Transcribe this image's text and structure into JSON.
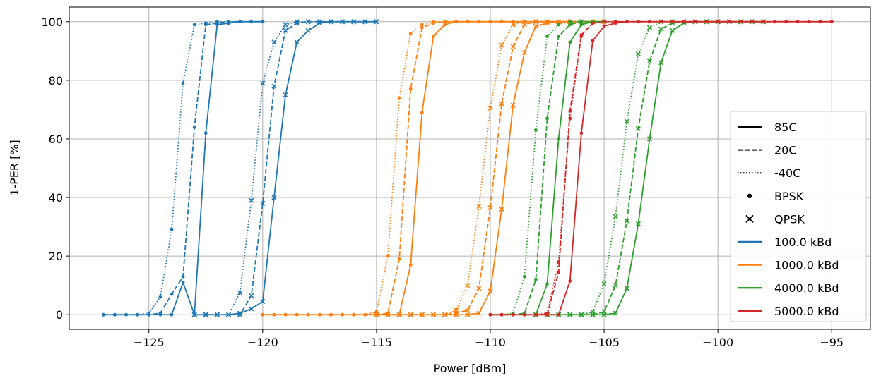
{
  "chart_data": {
    "type": "line",
    "xlabel": "Power [dBm]",
    "ylabel": "1-PER [%]",
    "xlim": [
      -128.5,
      -93.3
    ],
    "ylim": [
      -5,
      105
    ],
    "xticks": [
      -125,
      -120,
      -115,
      -110,
      -105,
      -100,
      -95
    ],
    "xtick_labels": [
      "−125",
      "−120",
      "−115",
      "−110",
      "−105",
      "−100",
      "−95"
    ],
    "yticks": [
      0,
      20,
      40,
      60,
      80,
      100
    ],
    "ytick_labels": [
      "0",
      "20",
      "40",
      "60",
      "80",
      "100"
    ],
    "grid": true,
    "legend_position": "lower-right",
    "colors": {
      "100.0 kBd": "#1f77b4",
      "1000.0 kBd": "#ff7f0e",
      "4000.0 kBd": "#2ca02c",
      "5000.0 kBd": "#d62728"
    },
    "legend": [
      {
        "label": "85C",
        "kind": "line",
        "dash": "solid"
      },
      {
        "label": "20C",
        "kind": "line",
        "dash": "dashed"
      },
      {
        "label": "-40C",
        "kind": "line",
        "dash": "dotted"
      },
      {
        "label": "BPSK",
        "kind": "marker",
        "marker": "dot"
      },
      {
        "label": "QPSK",
        "kind": "marker",
        "marker": "x"
      },
      {
        "label": "100.0 kBd",
        "kind": "color"
      },
      {
        "label": "1000.0 kBd",
        "kind": "color"
      },
      {
        "label": "4000.0 kBd",
        "kind": "color"
      },
      {
        "label": "5000.0 kBd",
        "kind": "color"
      }
    ],
    "series": [
      {
        "rate": "100.0 kBd",
        "temp": "-40C",
        "mod": "BPSK",
        "x": [
          -127,
          -126.5,
          -126,
          -125.5,
          -125,
          -124.5,
          -124,
          -123.5,
          -123,
          -122.5,
          -122,
          -121.5,
          -121,
          -120.5,
          -120
        ],
        "y": [
          0,
          0,
          0,
          0,
          0.5,
          6,
          29,
          79,
          99,
          99.5,
          100,
          100,
          100,
          100,
          100
        ]
      },
      {
        "rate": "100.0 kBd",
        "temp": "20C",
        "mod": "BPSK",
        "x": [
          -127,
          -126.5,
          -126,
          -125.5,
          -125,
          -124.5,
          -124,
          -123.5,
          -123,
          -122.5,
          -122,
          -121.5,
          -121,
          -120.5,
          -120
        ],
        "y": [
          0,
          0,
          0,
          0,
          0,
          0.5,
          7,
          13,
          64,
          99,
          99.5,
          100,
          100,
          100,
          100
        ]
      },
      {
        "rate": "100.0 kBd",
        "temp": "85C",
        "mod": "BPSK",
        "x": [
          -127,
          -126.5,
          -126,
          -125.5,
          -125,
          -124.5,
          -124,
          -123.5,
          -123,
          -122.5,
          -122,
          -121.5,
          -121,
          -120.5,
          -120
        ],
        "y": [
          0,
          0,
          0,
          0,
          0,
          0,
          0,
          11,
          0,
          62,
          99,
          99.5,
          100,
          100,
          100
        ]
      },
      {
        "rate": "100.0 kBd",
        "temp": "-40C",
        "mod": "QPSK",
        "x": [
          -123,
          -122.5,
          -122,
          -121.5,
          -121,
          -120.5,
          -120,
          -119.5,
          -119,
          -118.5,
          -118,
          -117.5,
          -117,
          -116.5,
          -116,
          -115.5,
          -115
        ],
        "y": [
          0,
          0,
          0,
          0,
          7.5,
          39,
          79,
          93,
          99,
          100,
          100,
          100,
          100,
          100,
          100,
          100,
          100
        ]
      },
      {
        "rate": "100.0 kBd",
        "temp": "20C",
        "mod": "QPSK",
        "x": [
          -123,
          -122.5,
          -122,
          -121.5,
          -121,
          -120.5,
          -120,
          -119.5,
          -119,
          -118.5,
          -118,
          -117.5,
          -117,
          -116.5,
          -116,
          -115.5,
          -115
        ],
        "y": [
          0,
          0,
          0,
          0,
          0,
          6.5,
          38,
          78,
          97,
          99.5,
          100,
          100,
          100,
          100,
          100,
          100,
          100
        ]
      },
      {
        "rate": "100.0 kBd",
        "temp": "85C",
        "mod": "QPSK",
        "x": [
          -123,
          -122.5,
          -122,
          -121.5,
          -121,
          -120.5,
          -120,
          -119.5,
          -119,
          -118.5,
          -118,
          -117.5,
          -117,
          -116.5,
          -116,
          -115.5,
          -115
        ],
        "y": [
          0,
          0,
          0,
          0,
          0.5,
          2,
          4.5,
          40,
          75,
          93,
          97,
          99.5,
          100,
          100,
          100,
          100,
          100
        ]
      },
      {
        "rate": "1000.0 kBd",
        "temp": "-40C",
        "mod": "BPSK",
        "x": [
          -120,
          -119.5,
          -119,
          -118.5,
          -118,
          -117.5,
          -117,
          -116.5,
          -116,
          -115.5,
          -115,
          -114.5,
          -114,
          -113.5,
          -113,
          -112.5,
          -112,
          -111.5,
          -111,
          -110.5,
          -110,
          -109.5,
          -109,
          -108.5,
          -108,
          -107.5,
          -107,
          -106.5,
          -106,
          -105.5,
          -105
        ],
        "y": [
          0,
          0,
          0,
          0,
          0,
          0,
          0,
          0,
          0,
          0,
          1,
          20,
          74,
          96,
          99,
          100,
          100,
          100,
          100,
          100,
          100,
          100,
          100,
          100,
          100,
          100,
          100,
          100,
          100,
          100,
          100
        ]
      },
      {
        "rate": "1000.0 kBd",
        "temp": "20C",
        "mod": "BPSK",
        "x": [
          -120,
          -119.5,
          -119,
          -118.5,
          -118,
          -117.5,
          -117,
          -116.5,
          -116,
          -115.5,
          -115,
          -114.5,
          -114,
          -113.5,
          -113,
          -112.5,
          -112,
          -111.5,
          -111,
          -110.5,
          -110,
          -109.5,
          -109,
          -108.5,
          -108,
          -107.5,
          -107,
          -106.5,
          -106,
          -105.5,
          -105
        ],
        "y": [
          0,
          0,
          0,
          0,
          0,
          0,
          0,
          0,
          0,
          0,
          0,
          0.5,
          19,
          77,
          98,
          99.5,
          100,
          100,
          100,
          100,
          100,
          100,
          100,
          100,
          100,
          100,
          100,
          100,
          100,
          100,
          100
        ]
      },
      {
        "rate": "1000.0 kBd",
        "temp": "85C",
        "mod": "BPSK",
        "x": [
          -120,
          -119.5,
          -119,
          -118.5,
          -118,
          -117.5,
          -117,
          -116.5,
          -116,
          -115.5,
          -115,
          -114.5,
          -114,
          -113.5,
          -113,
          -112.5,
          -112,
          -111.5,
          -111,
          -110.5,
          -110,
          -109.5,
          -109,
          -108.5,
          -108,
          -107.5,
          -107,
          -106.5,
          -106,
          -105.5,
          -105
        ],
        "y": [
          0,
          0,
          0,
          0,
          0,
          0,
          0,
          0,
          0,
          0,
          0,
          0,
          0,
          17,
          69,
          95,
          99,
          100,
          100,
          100,
          100,
          100,
          100,
          100,
          100,
          100,
          100,
          100,
          100,
          100,
          100
        ]
      },
      {
        "rate": "1000.0 kBd",
        "temp": "-40C",
        "mod": "QPSK",
        "x": [
          -115,
          -114.5,
          -114,
          -113.5,
          -113,
          -112.5,
          -112,
          -111.5,
          -111,
          -110.5,
          -110,
          -109.5,
          -109,
          -108.5,
          -108,
          -107.5,
          -107,
          -106.5,
          -106,
          -105.5,
          -105
        ],
        "y": [
          0,
          0,
          0,
          0,
          0,
          0,
          0,
          1.5,
          10,
          37,
          70.5,
          92,
          99,
          100,
          100,
          100,
          100,
          100,
          100,
          100,
          100
        ]
      },
      {
        "rate": "1000.0 kBd",
        "temp": "20C",
        "mod": "QPSK",
        "x": [
          -115,
          -114.5,
          -114,
          -113.5,
          -113,
          -112.5,
          -112,
          -111.5,
          -111,
          -110.5,
          -110,
          -109.5,
          -109,
          -108.5,
          -108,
          -107.5,
          -107,
          -106.5,
          -106,
          -105.5,
          -105
        ],
        "y": [
          0,
          0,
          0,
          0,
          0,
          0,
          0,
          0.5,
          1.5,
          9,
          36.5,
          72,
          91.5,
          99,
          100,
          100,
          100,
          100,
          100,
          100,
          100
        ]
      },
      {
        "rate": "1000.0 kBd",
        "temp": "85C",
        "mod": "QPSK",
        "x": [
          -115,
          -114.5,
          -114,
          -113.5,
          -113,
          -112.5,
          -112,
          -111.5,
          -111,
          -110.5,
          -110,
          -109.5,
          -109,
          -108.5,
          -108,
          -107.5,
          -107,
          -106.5,
          -106,
          -105.5,
          -105
        ],
        "y": [
          0,
          0,
          0,
          0,
          0,
          0,
          0,
          0,
          0,
          0.5,
          8,
          36,
          71.5,
          89.5,
          98.5,
          99.5,
          100,
          100,
          100,
          100,
          100
        ]
      },
      {
        "rate": "4000.0 kBd",
        "temp": "-40C",
        "mod": "BPSK",
        "x": [
          -110,
          -109.5,
          -109,
          -108.5,
          -108,
          -107.5,
          -107,
          -106.5,
          -106,
          -105.5,
          -105
        ],
        "y": [
          0,
          0,
          0.5,
          13,
          63,
          95,
          99,
          100,
          100,
          100,
          100
        ]
      },
      {
        "rate": "4000.0 kBd",
        "temp": "20C",
        "mod": "BPSK",
        "x": [
          -110,
          -109.5,
          -109,
          -108.5,
          -108,
          -107.5,
          -107,
          -106.5,
          -106,
          -105.5,
          -105
        ],
        "y": [
          0,
          0,
          0,
          0.5,
          12,
          67,
          95,
          99,
          100,
          100,
          100
        ]
      },
      {
        "rate": "4000.0 kBd",
        "temp": "85C",
        "mod": "BPSK",
        "x": [
          -110,
          -109.5,
          -109,
          -108.5,
          -108,
          -107.5,
          -107,
          -106.5,
          -106,
          -105.5,
          -105
        ],
        "y": [
          0,
          0,
          0,
          0,
          0,
          10.5,
          60,
          93,
          99,
          100,
          100
        ]
      },
      {
        "rate": "4000.0 kBd",
        "temp": "-40C",
        "mod": "QPSK",
        "x": [
          -108,
          -107.5,
          -107,
          -106.5,
          -106,
          -105.5,
          -105,
          -104.5,
          -104,
          -103.5,
          -103,
          -102.5,
          -102,
          -101.5,
          -101,
          -100.5,
          -100,
          -99.5,
          -99,
          -98.5,
          -98
        ],
        "y": [
          0,
          0,
          0,
          0,
          0,
          1,
          10.5,
          33.5,
          66,
          89,
          98,
          100,
          100,
          100,
          100,
          100,
          100,
          100,
          100,
          100,
          100
        ]
      },
      {
        "rate": "4000.0 kBd",
        "temp": "20C",
        "mod": "QPSK",
        "x": [
          -108,
          -107.5,
          -107,
          -106.5,
          -106,
          -105.5,
          -105,
          -104.5,
          -104,
          -103.5,
          -103,
          -102.5,
          -102,
          -101.5,
          -101,
          -100.5,
          -100,
          -99.5,
          -99,
          -98.5,
          -98
        ],
        "y": [
          0,
          0,
          0,
          0,
          0,
          0,
          1,
          10,
          32,
          63.5,
          86.5,
          97.5,
          99.5,
          100,
          100,
          100,
          100,
          100,
          100,
          100,
          100
        ]
      },
      {
        "rate": "4000.0 kBd",
        "temp": "85C",
        "mod": "QPSK",
        "x": [
          -108,
          -107.5,
          -107,
          -106.5,
          -106,
          -105.5,
          -105,
          -104.5,
          -104,
          -103.5,
          -103,
          -102.5,
          -102,
          -101.5,
          -101,
          -100.5,
          -100,
          -99.5,
          -99,
          -98.5,
          -98
        ],
        "y": [
          0,
          0,
          0,
          0,
          0,
          0,
          0,
          0.5,
          9,
          31,
          60,
          86,
          97,
          99.5,
          100,
          100,
          100,
          100,
          100,
          100,
          100
        ]
      },
      {
        "rate": "5000.0 kBd",
        "temp": "-40C",
        "mod": "BPSK",
        "x": [
          -110,
          -109.5,
          -109,
          -108.5,
          -108,
          -107.5,
          -107,
          -106.5,
          -106,
          -105.5,
          -105,
          -104.5,
          -104,
          -103.5,
          -103,
          -102.5,
          -102,
          -101.5,
          -101,
          -100.5,
          -100,
          -99.5,
          -99,
          -98.5,
          -98,
          -97.5,
          -97,
          -96.5,
          -96,
          -95.5,
          -95
        ],
        "y": [
          0,
          0,
          0,
          0,
          0,
          0.5,
          18,
          67,
          95,
          99.5,
          100,
          100,
          100,
          100,
          100,
          100,
          100,
          100,
          100,
          100,
          100,
          100,
          100,
          100,
          100,
          100,
          100,
          100,
          100,
          100,
          100
        ]
      },
      {
        "rate": "5000.0 kBd",
        "temp": "20C",
        "mod": "BPSK",
        "x": [
          -110,
          -109.5,
          -109,
          -108.5,
          -108,
          -107.5,
          -107,
          -106.5,
          -106,
          -105.5,
          -105,
          -104.5,
          -104,
          -103.5,
          -103,
          -102.5,
          -102,
          -101.5,
          -101,
          -100.5,
          -100,
          -99.5,
          -99,
          -98.5,
          -98,
          -97.5,
          -97,
          -96.5,
          -96,
          -95.5,
          -95
        ],
        "y": [
          0,
          0,
          0,
          0,
          0,
          0,
          14.5,
          69.5,
          95.5,
          99.5,
          100,
          100,
          100,
          100,
          100,
          100,
          100,
          100,
          100,
          100,
          100,
          100,
          100,
          100,
          100,
          100,
          100,
          100,
          100,
          100,
          100
        ]
      },
      {
        "rate": "5000.0 kBd",
        "temp": "85C",
        "mod": "BPSK",
        "x": [
          -110,
          -109.5,
          -109,
          -108.5,
          -108,
          -107.5,
          -107,
          -106.5,
          -106,
          -105.5,
          -105,
          -104.5,
          -104,
          -103.5,
          -103,
          -102.5,
          -102,
          -101.5,
          -101,
          -100.5,
          -100,
          -99.5,
          -99,
          -98.5,
          -98,
          -97.5,
          -97,
          -96.5,
          -96,
          -95.5,
          -95
        ],
        "y": [
          0,
          0,
          0,
          0,
          0,
          0,
          0,
          11.5,
          62,
          93.5,
          98.5,
          99.5,
          100,
          100,
          100,
          100,
          100,
          100,
          100,
          100,
          100,
          100,
          100,
          100,
          100,
          100,
          100,
          100,
          100,
          100,
          100
        ]
      }
    ]
  }
}
